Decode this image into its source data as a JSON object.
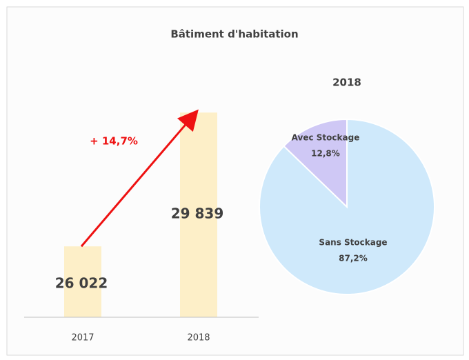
{
  "title": "Bâtiment d'habitation",
  "chart_data": [
    {
      "type": "bar",
      "categories": [
        "2017",
        "2018"
      ],
      "values": [
        26022,
        29839
      ],
      "value_labels": [
        "26 022",
        "29 839"
      ],
      "color": "#fdefc8",
      "ylim": [
        24000,
        30000
      ],
      "annotation": "+ 14,7%"
    },
    {
      "type": "pie",
      "title": "2018",
      "categories": [
        "Sans Stockage",
        "Avec Stockage"
      ],
      "values": [
        87.2,
        12.8
      ],
      "value_labels": [
        "87,2%",
        "12,8%"
      ],
      "colors": [
        "#cfe9fb",
        "#cfc8f5"
      ]
    }
  ]
}
